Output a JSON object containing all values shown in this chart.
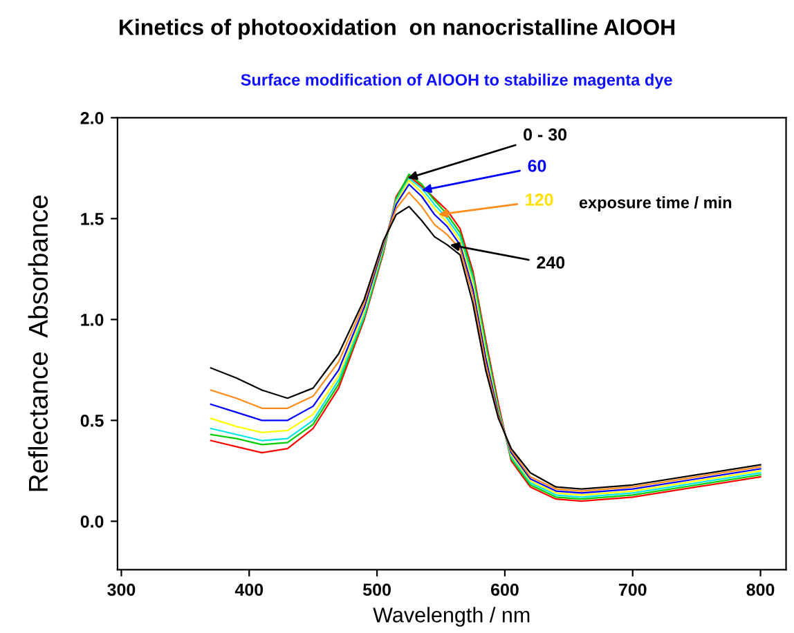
{
  "chart_data": {
    "type": "line",
    "title": "Kinetics of photooxidation  on nanocristalline AlOOH",
    "subtitle": "Surface modification of AlOOH to stabilize magenta dye",
    "xlabel": "Wavelength / nm",
    "ylabel": "Reflectance  Absorbance",
    "x": [
      370,
      390,
      410,
      430,
      450,
      470,
      490,
      505,
      515,
      525,
      535,
      545,
      555,
      565,
      575,
      585,
      595,
      605,
      620,
      640,
      660,
      700,
      750,
      800
    ],
    "series": [
      {
        "color": "#ff0000",
        "values": [
          0.4,
          0.37,
          0.34,
          0.36,
          0.46,
          0.66,
          1.0,
          1.33,
          1.61,
          1.71,
          1.66,
          1.6,
          1.54,
          1.45,
          1.24,
          0.9,
          0.58,
          0.3,
          0.17,
          0.11,
          0.1,
          0.12,
          0.17,
          0.22
        ]
      },
      {
        "color": "#00cc00",
        "values": [
          0.43,
          0.41,
          0.38,
          0.39,
          0.48,
          0.68,
          1.01,
          1.34,
          1.6,
          1.72,
          1.67,
          1.59,
          1.52,
          1.43,
          1.22,
          0.88,
          0.56,
          0.31,
          0.18,
          0.12,
          0.11,
          0.13,
          0.18,
          0.23
        ]
      },
      {
        "color": "#00e5e5",
        "values": [
          0.46,
          0.43,
          0.4,
          0.41,
          0.5,
          0.7,
          1.02,
          1.35,
          1.59,
          1.7,
          1.65,
          1.57,
          1.5,
          1.41,
          1.2,
          0.86,
          0.55,
          0.32,
          0.19,
          0.13,
          0.12,
          0.14,
          0.19,
          0.24
        ]
      },
      {
        "color": "#ffff00",
        "values": [
          0.51,
          0.47,
          0.44,
          0.45,
          0.53,
          0.72,
          1.04,
          1.36,
          1.58,
          1.69,
          1.63,
          1.55,
          1.48,
          1.39,
          1.18,
          0.84,
          0.54,
          0.33,
          0.2,
          0.14,
          0.13,
          0.15,
          0.2,
          0.25
        ]
      },
      {
        "color": "#0000ff",
        "values": [
          0.58,
          0.54,
          0.5,
          0.5,
          0.57,
          0.75,
          1.06,
          1.37,
          1.57,
          1.67,
          1.61,
          1.52,
          1.46,
          1.37,
          1.15,
          0.81,
          0.53,
          0.34,
          0.21,
          0.15,
          0.14,
          0.16,
          0.21,
          0.26
        ]
      },
      {
        "color": "#ff8c1a",
        "values": [
          0.65,
          0.61,
          0.56,
          0.56,
          0.62,
          0.79,
          1.08,
          1.38,
          1.55,
          1.63,
          1.56,
          1.47,
          1.42,
          1.35,
          1.12,
          0.78,
          0.52,
          0.35,
          0.22,
          0.16,
          0.15,
          0.17,
          0.22,
          0.27
        ]
      },
      {
        "color": "#000000",
        "values": [
          0.76,
          0.71,
          0.65,
          0.61,
          0.66,
          0.83,
          1.1,
          1.39,
          1.52,
          1.56,
          1.49,
          1.41,
          1.37,
          1.32,
          1.08,
          0.75,
          0.51,
          0.36,
          0.24,
          0.17,
          0.16,
          0.18,
          0.23,
          0.28
        ]
      }
    ],
    "annotations": [
      {
        "text": "0 - 30",
        "x": 524,
        "y": 1.7
      },
      {
        "text": "60",
        "x": 535,
        "y": 1.64
      },
      {
        "text": "120",
        "x": 548,
        "y": 1.52
      },
      {
        "text": "240",
        "x": 557,
        "y": 1.37
      },
      "exposure time / min"
    ],
    "xlim": [
      297,
      820
    ],
    "ylim": [
      -0.24,
      2.0
    ],
    "xticks": [
      300,
      400,
      500,
      600,
      700,
      800
    ],
    "yticks": [
      {
        "value": 0,
        "label": "0.0"
      },
      {
        "value": 0.5,
        "label": "0.5"
      },
      {
        "value": 1.0,
        "label": "1.0"
      },
      {
        "value": 1.5,
        "label": "1.5"
      },
      {
        "value": 2.0,
        "label": "2.0"
      }
    ],
    "grid": false,
    "legend": false,
    "marker": "none",
    "line_style": "solid"
  }
}
